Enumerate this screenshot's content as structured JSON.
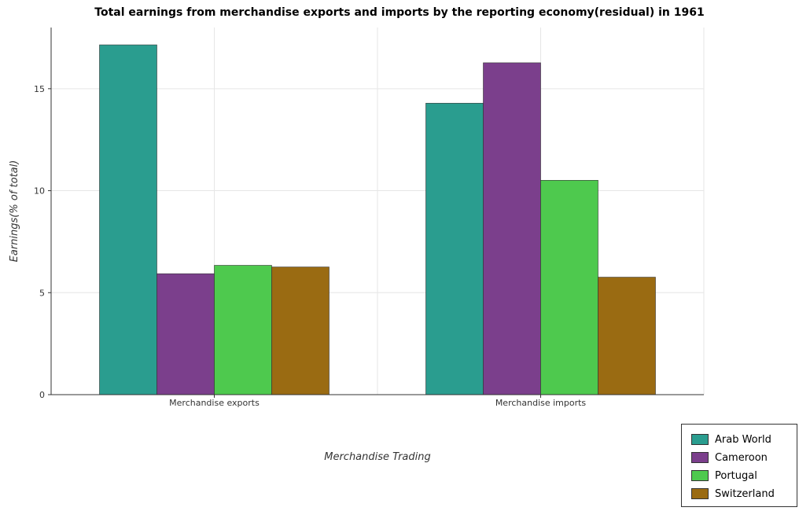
{
  "chart_data": {
    "type": "bar",
    "title": "Total earnings from merchandise exports and imports by the reporting economy(residual) in 1961",
    "xlabel": "Merchandise Trading",
    "ylabel": "Earnings(% of total)",
    "categories": [
      "Merchandise exports",
      "Merchandise imports"
    ],
    "ylim": [
      0,
      18
    ],
    "yticks": [
      0,
      5,
      10,
      15
    ],
    "grid": true,
    "legend_position": "bottom-right",
    "series": [
      {
        "name": "Arab World",
        "color": "#2a9d8f",
        "values": [
          17.15,
          14.29
        ]
      },
      {
        "name": "Cameroon",
        "color": "#7b3f8c",
        "values": [
          5.93,
          16.27
        ]
      },
      {
        "name": "Portugal",
        "color": "#4ec94e",
        "values": [
          6.34,
          10.51
        ]
      },
      {
        "name": "Switzerland",
        "color": "#9a6b12",
        "values": [
          6.26,
          5.76
        ]
      }
    ]
  }
}
